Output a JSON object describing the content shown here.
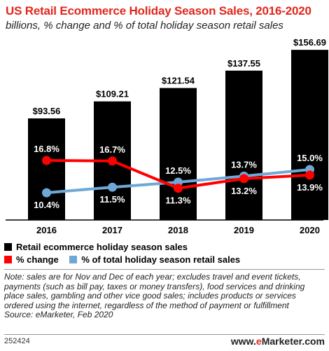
{
  "title": "US Retail Ecommerce Holiday Season Sales, 2016-2020",
  "subtitle": "billions, % change and % of total holiday season retail sales",
  "chart_data": {
    "type": "bar",
    "categories": [
      "2016",
      "2017",
      "2018",
      "2019",
      "2020"
    ],
    "series": [
      {
        "name": "Retail ecommerce holiday season sales",
        "values": [
          93.56,
          109.21,
          121.54,
          137.55,
          156.69
        ],
        "labels": [
          "$93.56",
          "$109.21",
          "$121.54",
          "$137.55",
          "$156.69"
        ],
        "color": "#000000"
      },
      {
        "name": "% change",
        "type": "line",
        "values": [
          16.8,
          16.7,
          11.3,
          13.2,
          13.9
        ],
        "labels": [
          "16.8%",
          "16.7%",
          "11.3%",
          "13.2%",
          "13.9%"
        ],
        "color": "#ff0000"
      },
      {
        "name": "% of total holiday season retail sales",
        "type": "line",
        "values": [
          10.4,
          11.5,
          12.5,
          13.7,
          15.0
        ],
        "labels": [
          "10.4%",
          "11.5%",
          "12.5%",
          "13.7%",
          "15.0%"
        ],
        "color": "#6fa8d6"
      }
    ],
    "ylim": [
      0,
      160
    ],
    "grid": false,
    "legend_position": "bottom"
  },
  "note": "Note: sales are for Nov and Dec of each year; excludes travel and event tickets, payments (such as bill pay, taxes or money transfers), food services and drinking place sales, gambling and other vice good sales; includes products or services ordered using the internet, regardless of the method of payment or fulfillment",
  "source": "Source: eMarketer, Feb 2020",
  "footer_id": "252424",
  "logo": {
    "prefix": "www.",
    "brand_e": "e",
    "brand_rest": "Marketer",
    "suffix": ".com"
  }
}
